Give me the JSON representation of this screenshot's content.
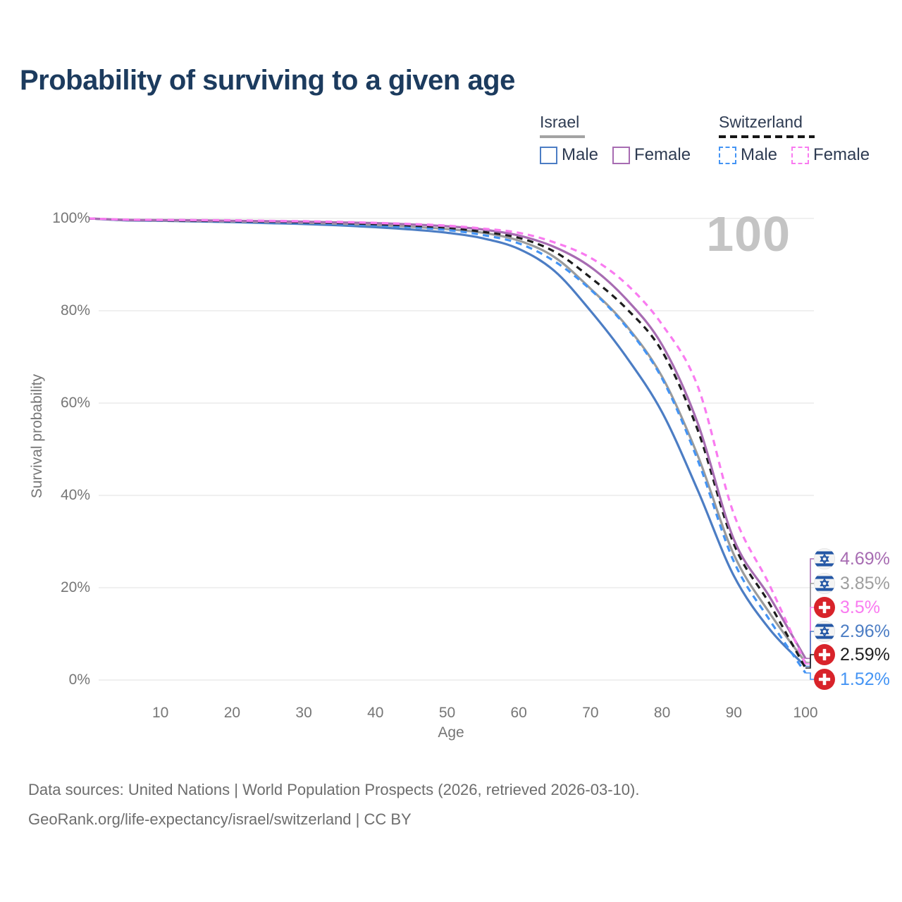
{
  "title": "Probability of surviving to a given age",
  "legend": {
    "groups": [
      {
        "name": "Israel",
        "line_style": "solid",
        "line_color": "#a3a3a3",
        "items": [
          {
            "label": "Male",
            "color": "#4c7dc4",
            "dashed": false
          },
          {
            "label": "Female",
            "color": "#a76cb2",
            "dashed": false
          }
        ]
      },
      {
        "name": "Switzerland",
        "line_style": "dashed",
        "line_color": "#161616",
        "items": [
          {
            "label": "Male",
            "color": "#4494f4",
            "dashed": true
          },
          {
            "label": "Female",
            "color": "#f97bf0",
            "dashed": true
          }
        ]
      }
    ]
  },
  "chart": {
    "watermark": "100"
  },
  "chart_data": {
    "type": "line",
    "title": "Probability of surviving to a given age",
    "xlabel": "Age",
    "ylabel": "Survival probability",
    "xlim": [
      0,
      100
    ],
    "ylim": [
      0,
      100
    ],
    "grid": "horizontal-only",
    "grid_color": "#e8e8e8",
    "x_ticks": [
      10,
      20,
      30,
      40,
      50,
      60,
      70,
      80,
      90,
      100
    ],
    "y_ticks": [
      {
        "value": 100,
        "label": "100%"
      },
      {
        "value": 80,
        "label": "80%"
      },
      {
        "value": 60,
        "label": "60%"
      },
      {
        "value": 40,
        "label": "40%"
      },
      {
        "value": 20,
        "label": "20%"
      },
      {
        "value": 0,
        "label": "0%"
      }
    ],
    "x": [
      0,
      5,
      10,
      15,
      20,
      25,
      30,
      35,
      40,
      45,
      50,
      55,
      60,
      65,
      70,
      75,
      80,
      85,
      90,
      95,
      100
    ],
    "series": [
      {
        "id": "il_m",
        "name": "Israel Male",
        "country": "israel",
        "sex": "male",
        "color": "#4c7dc4",
        "dashed": false,
        "values": [
          100,
          99.6,
          99.5,
          99.35,
          99.2,
          99.0,
          98.8,
          98.5,
          98.1,
          97.6,
          96.9,
          95.7,
          93.4,
          88.6,
          80.0,
          70.0,
          58.0,
          41.0,
          22.6,
          11.0,
          2.96
        ],
        "end_label": "2.96%"
      },
      {
        "id": "il_t",
        "name": "Israel Both sexes",
        "country": "israel",
        "sex": "both",
        "color": "#9b9b9b",
        "dashed": false,
        "values": [
          100,
          99.65,
          99.55,
          99.45,
          99.35,
          99.2,
          99.05,
          98.85,
          98.6,
          98.2,
          97.7,
          96.9,
          95.2,
          91.6,
          84.8,
          76.8,
          65.7,
          48.5,
          27.2,
          14.5,
          3.85
        ],
        "end_label": "3.85%"
      },
      {
        "id": "ch_m",
        "name": "Switzerland Male",
        "country": "switzerland",
        "sex": "male",
        "color": "#4494f4",
        "dashed": true,
        "values": [
          100,
          99.65,
          99.55,
          99.45,
          99.3,
          99.15,
          99.0,
          98.75,
          98.5,
          98.1,
          97.5,
          96.4,
          94.6,
          90.7,
          84.6,
          76.5,
          65.3,
          47.5,
          25.7,
          13.0,
          1.52
        ],
        "end_label": "1.52%"
      },
      {
        "id": "ch_t",
        "name": "Switzerland Both sexes",
        "country": "switzerland",
        "sex": "both",
        "color": "#1c1c1c",
        "dashed": true,
        "values": [
          100,
          99.7,
          99.6,
          99.5,
          99.4,
          99.3,
          99.15,
          99.0,
          98.75,
          98.45,
          98.0,
          97.1,
          95.8,
          92.8,
          87.2,
          80.5,
          71.2,
          54.0,
          29.5,
          16.5,
          2.59
        ],
        "end_label": "2.59%"
      },
      {
        "id": "il_f",
        "name": "Israel Female",
        "country": "israel",
        "sex": "female",
        "color": "#a76cb2",
        "dashed": false,
        "values": [
          100,
          99.7,
          99.65,
          99.6,
          99.5,
          99.4,
          99.3,
          99.15,
          99.0,
          98.7,
          98.3,
          97.6,
          96.3,
          93.8,
          89.5,
          82.5,
          72.6,
          55.5,
          30.5,
          18.0,
          4.69
        ],
        "end_label": "4.69%"
      },
      {
        "id": "ch_f",
        "name": "Switzerland Female",
        "country": "switzerland",
        "sex": "female",
        "color": "#f97bf0",
        "dashed": true,
        "values": [
          100,
          99.75,
          99.7,
          99.65,
          99.6,
          99.5,
          99.4,
          99.25,
          99.05,
          98.8,
          98.45,
          97.8,
          96.9,
          94.8,
          91.5,
          85.8,
          77.0,
          63.5,
          36.0,
          20.5,
          3.5
        ],
        "end_label": "3.5%"
      }
    ]
  },
  "end_labels": [
    {
      "flag": "israel",
      "series": "il_f",
      "value": "4.69%",
      "color": "#a76cb2"
    },
    {
      "flag": "israel",
      "series": "il_t",
      "value": "3.85%",
      "color": "#9e9e9e"
    },
    {
      "flag": "switzerland",
      "series": "ch_f",
      "value": "3.5%",
      "color": "#f97bf0"
    },
    {
      "flag": "israel",
      "series": "il_m",
      "value": "2.96%",
      "color": "#4c7dc4"
    },
    {
      "flag": "switzerland",
      "series": "ch_t",
      "value": "2.59%",
      "color": "#1f1f1f"
    },
    {
      "flag": "switzerland",
      "series": "ch_m",
      "value": "1.52%",
      "color": "#4494f4"
    }
  ],
  "footer": {
    "line1": "Data sources: United Nations | World Population Prospects (2026, retrieved 2026-03-10).",
    "line2": "GeoRank.org/life-expectancy/israel/switzerland | CC BY"
  }
}
